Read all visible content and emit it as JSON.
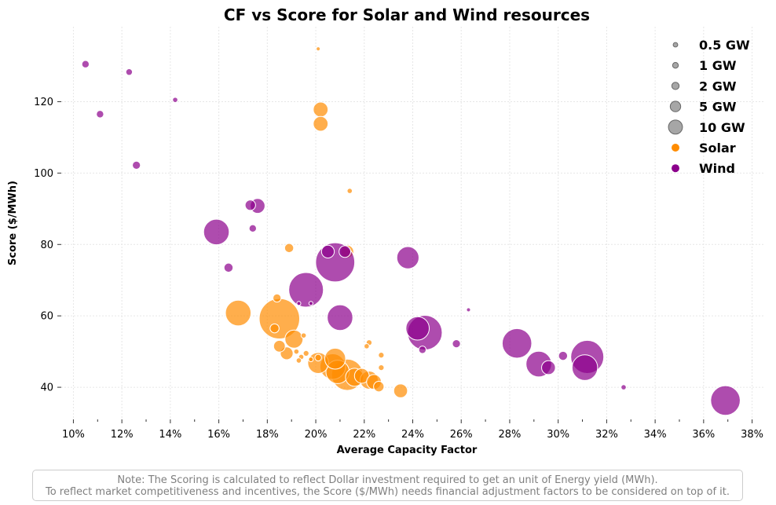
{
  "chart_data": {
    "type": "scatter",
    "title": "CF vs Score for Solar and Wind resources",
    "xlabel": "Average Capacity Factor",
    "ylabel": "Score ($/MWh)",
    "xlim": [
      0.095,
      0.385
    ],
    "ylim": [
      31,
      141
    ],
    "x_ticks": [
      {
        "value": 0.1,
        "label": "10%"
      },
      {
        "value": 0.12,
        "label": "12%"
      },
      {
        "value": 0.14,
        "label": "14%"
      },
      {
        "value": 0.16,
        "label": "16%"
      },
      {
        "value": 0.18,
        "label": "18%"
      },
      {
        "value": 0.2,
        "label": "20%"
      },
      {
        "value": 0.22,
        "label": "22%"
      },
      {
        "value": 0.24,
        "label": "24%"
      },
      {
        "value": 0.26,
        "label": "26%"
      },
      {
        "value": 0.28,
        "label": "28%"
      },
      {
        "value": 0.3,
        "label": "30%"
      },
      {
        "value": 0.32,
        "label": "32%"
      },
      {
        "value": 0.34,
        "label": "34%"
      },
      {
        "value": 0.36,
        "label": "36%"
      },
      {
        "value": 0.38,
        "label": "38%"
      }
    ],
    "y_ticks": [
      {
        "value": 40,
        "label": "40"
      },
      {
        "value": 60,
        "label": "60"
      },
      {
        "value": 80,
        "label": "80"
      },
      {
        "value": 100,
        "label": "100"
      },
      {
        "value": 120,
        "label": "120"
      }
    ],
    "grid": true,
    "legend_position": "top-right",
    "size_legend": [
      {
        "label": "0.5 GW",
        "gw": 0.5
      },
      {
        "label": "1 GW",
        "gw": 1
      },
      {
        "label": "2 GW",
        "gw": 2
      },
      {
        "label": "5 GW",
        "gw": 5
      },
      {
        "label": "10 GW",
        "gw": 10
      }
    ],
    "series": [
      {
        "name": "Solar",
        "color": "#ff8c00",
        "points": [
          {
            "x": 0.201,
            "y": 134.8,
            "gw": 0.3
          },
          {
            "x": 0.202,
            "y": 117.8,
            "gw": 4.0
          },
          {
            "x": 0.202,
            "y": 113.8,
            "gw": 4.0
          },
          {
            "x": 0.214,
            "y": 95.0,
            "gw": 0.5
          },
          {
            "x": 0.213,
            "y": 78.0,
            "gw": 3.0
          },
          {
            "x": 0.189,
            "y": 79.0,
            "gw": 1.5
          },
          {
            "x": 0.168,
            "y": 60.8,
            "gw": 12.0
          },
          {
            "x": 0.185,
            "y": 59.2,
            "gw": 30.0
          },
          {
            "x": 0.184,
            "y": 65.0,
            "gw": 1.2
          },
          {
            "x": 0.183,
            "y": 56.5,
            "gw": 1.5
          },
          {
            "x": 0.191,
            "y": 53.5,
            "gw": 6.0
          },
          {
            "x": 0.195,
            "y": 54.5,
            "gw": 0.5
          },
          {
            "x": 0.185,
            "y": 51.5,
            "gw": 2.5
          },
          {
            "x": 0.188,
            "y": 49.5,
            "gw": 3.0
          },
          {
            "x": 0.192,
            "y": 50.0,
            "gw": 0.5
          },
          {
            "x": 0.194,
            "y": 48.5,
            "gw": 0.5
          },
          {
            "x": 0.196,
            "y": 49.5,
            "gw": 0.6
          },
          {
            "x": 0.193,
            "y": 47.5,
            "gw": 0.5
          },
          {
            "x": 0.198,
            "y": 47.8,
            "gw": 0.4
          },
          {
            "x": 0.201,
            "y": 48.3,
            "gw": 0.8
          },
          {
            "x": 0.201,
            "y": 46.8,
            "gw": 8.0
          },
          {
            "x": 0.208,
            "y": 48.0,
            "gw": 8.0
          },
          {
            "x": 0.207,
            "y": 45.8,
            "gw": 12.0
          },
          {
            "x": 0.209,
            "y": 44.3,
            "gw": 10.0
          },
          {
            "x": 0.213,
            "y": 43.5,
            "gw": 18.0
          },
          {
            "x": 0.216,
            "y": 42.8,
            "gw": 6.0
          },
          {
            "x": 0.219,
            "y": 43.2,
            "gw": 4.0
          },
          {
            "x": 0.222,
            "y": 42.0,
            "gw": 6.0
          },
          {
            "x": 0.224,
            "y": 41.5,
            "gw": 4.0
          },
          {
            "x": 0.226,
            "y": 40.2,
            "gw": 2.0
          },
          {
            "x": 0.221,
            "y": 51.5,
            "gw": 0.5
          },
          {
            "x": 0.222,
            "y": 52.5,
            "gw": 0.6
          },
          {
            "x": 0.227,
            "y": 49.0,
            "gw": 0.6
          },
          {
            "x": 0.227,
            "y": 45.5,
            "gw": 0.6
          },
          {
            "x": 0.235,
            "y": 39.0,
            "gw": 3.5
          }
        ]
      },
      {
        "name": "Wind",
        "color": "#8b008b",
        "points": [
          {
            "x": 0.105,
            "y": 130.5,
            "gw": 1.0
          },
          {
            "x": 0.123,
            "y": 128.3,
            "gw": 0.8
          },
          {
            "x": 0.142,
            "y": 120.5,
            "gw": 0.5
          },
          {
            "x": 0.111,
            "y": 116.5,
            "gw": 1.0
          },
          {
            "x": 0.126,
            "y": 102.2,
            "gw": 1.2
          },
          {
            "x": 0.176,
            "y": 90.8,
            "gw": 4.0
          },
          {
            "x": 0.173,
            "y": 91.0,
            "gw": 2.0
          },
          {
            "x": 0.174,
            "y": 84.5,
            "gw": 1.0
          },
          {
            "x": 0.159,
            "y": 83.5,
            "gw": 12.0
          },
          {
            "x": 0.164,
            "y": 73.5,
            "gw": 1.5
          },
          {
            "x": 0.205,
            "y": 78.0,
            "gw": 3.0
          },
          {
            "x": 0.212,
            "y": 78.0,
            "gw": 2.5
          },
          {
            "x": 0.208,
            "y": 75.0,
            "gw": 28.0
          },
          {
            "x": 0.238,
            "y": 76.3,
            "gw": 9.0
          },
          {
            "x": 0.196,
            "y": 67.3,
            "gw": 22.0
          },
          {
            "x": 0.193,
            "y": 63.5,
            "gw": 0.3
          },
          {
            "x": 0.198,
            "y": 63.5,
            "gw": 0.3
          },
          {
            "x": 0.21,
            "y": 59.5,
            "gw": 12.0
          },
          {
            "x": 0.242,
            "y": 56.5,
            "gw": 10.0
          },
          {
            "x": 0.245,
            "y": 55.3,
            "gw": 22.0
          },
          {
            "x": 0.244,
            "y": 50.5,
            "gw": 1.0
          },
          {
            "x": 0.263,
            "y": 61.7,
            "gw": 0.3
          },
          {
            "x": 0.258,
            "y": 52.2,
            "gw": 1.2
          },
          {
            "x": 0.283,
            "y": 52.3,
            "gw": 16.0
          },
          {
            "x": 0.292,
            "y": 46.5,
            "gw": 12.0
          },
          {
            "x": 0.296,
            "y": 45.5,
            "gw": 3.5
          },
          {
            "x": 0.302,
            "y": 48.8,
            "gw": 1.5
          },
          {
            "x": 0.312,
            "y": 48.5,
            "gw": 20.0
          },
          {
            "x": 0.311,
            "y": 45.5,
            "gw": 12.0
          },
          {
            "x": 0.327,
            "y": 40.0,
            "gw": 0.5
          },
          {
            "x": 0.369,
            "y": 36.3,
            "gw": 16.0
          }
        ]
      }
    ]
  },
  "note": {
    "line1": "Note: The Scoring is calculated to reflect Dollar investment required to get an unit of Energy yield (MWh).",
    "line2": "To reflect market competitiveness and incentives, the Score ($/MWh) needs financial adjustment factors to be considered on top of it."
  }
}
